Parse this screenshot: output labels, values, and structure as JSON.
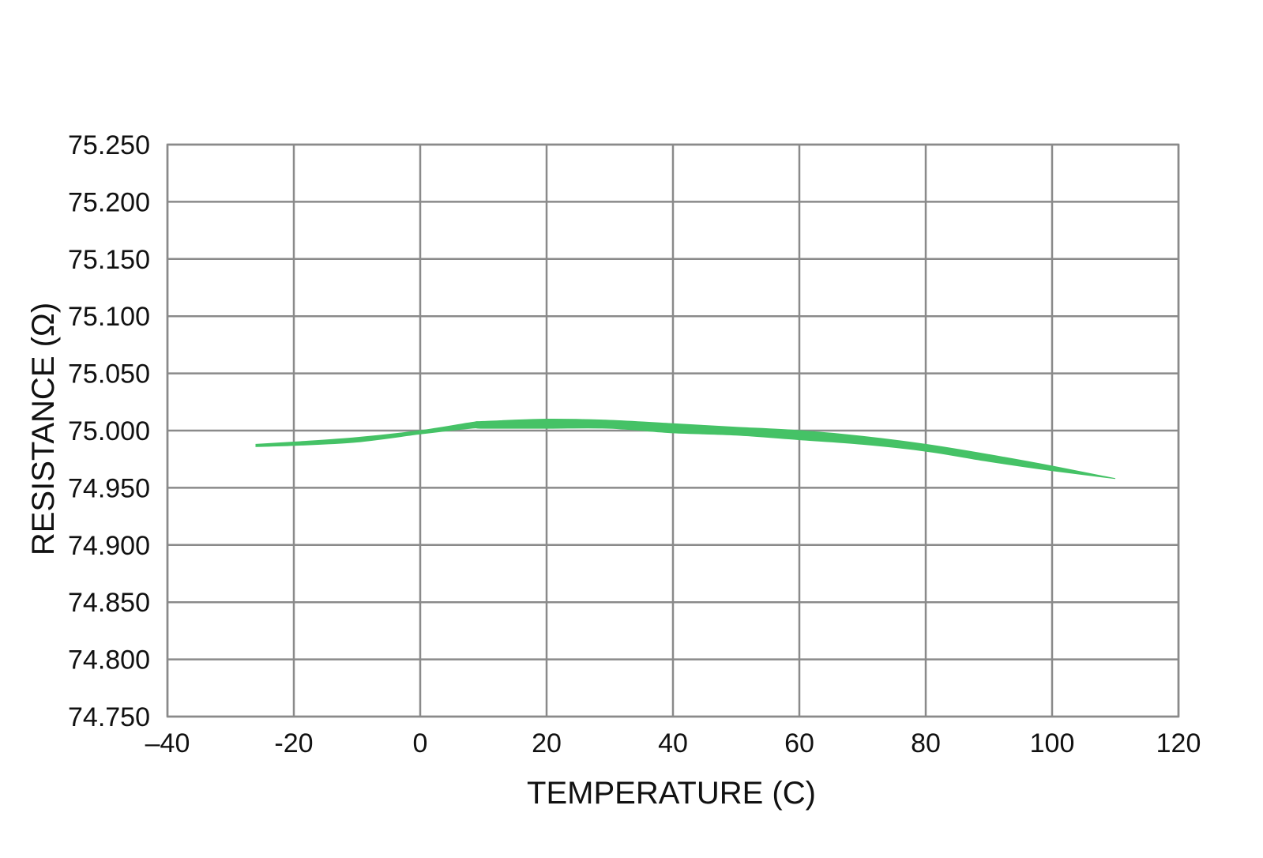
{
  "chart_data": {
    "type": "area",
    "title": "",
    "xlabel": "TEMPERATURE (C)",
    "ylabel": "RESISTANCE (Ω)",
    "xlim": [
      -40,
      120
    ],
    "ylim": [
      74.75,
      75.25
    ],
    "xticks": [
      -40,
      -20,
      0,
      20,
      40,
      60,
      80,
      100,
      120
    ],
    "xtick_labels": [
      "–40",
      "-20",
      "0",
      "20",
      "40",
      "60",
      "80",
      "100",
      "120"
    ],
    "yticks": [
      74.75,
      74.8,
      74.85,
      74.9,
      74.95,
      75.0,
      75.05,
      75.1,
      75.15,
      75.2,
      75.25
    ],
    "ytick_labels": [
      "74.750",
      "74.800",
      "74.850",
      "74.900",
      "74.950",
      "75.000",
      "75.050",
      "75.100",
      "75.150",
      "75.200",
      "75.250"
    ],
    "grid": true,
    "series": [
      {
        "color": "#45c266",
        "x": [
          -26,
          -20,
          -10,
          0,
          8,
          10,
          20,
          30,
          40,
          50,
          60,
          70,
          80,
          90,
          100,
          110
        ],
        "upper": [
          74.988,
          74.99,
          74.994,
          75.0,
          75.007,
          75.008,
          75.01,
          75.009,
          75.006,
          75.003,
          75.0,
          74.995,
          74.988,
          74.979,
          74.969,
          74.958
        ],
        "lower": [
          74.986,
          74.987,
          74.99,
          74.997,
          75.002,
          75.002,
          75.002,
          75.002,
          74.998,
          74.996,
          74.992,
          74.988,
          74.982,
          74.973,
          74.965,
          74.958
        ]
      }
    ]
  }
}
